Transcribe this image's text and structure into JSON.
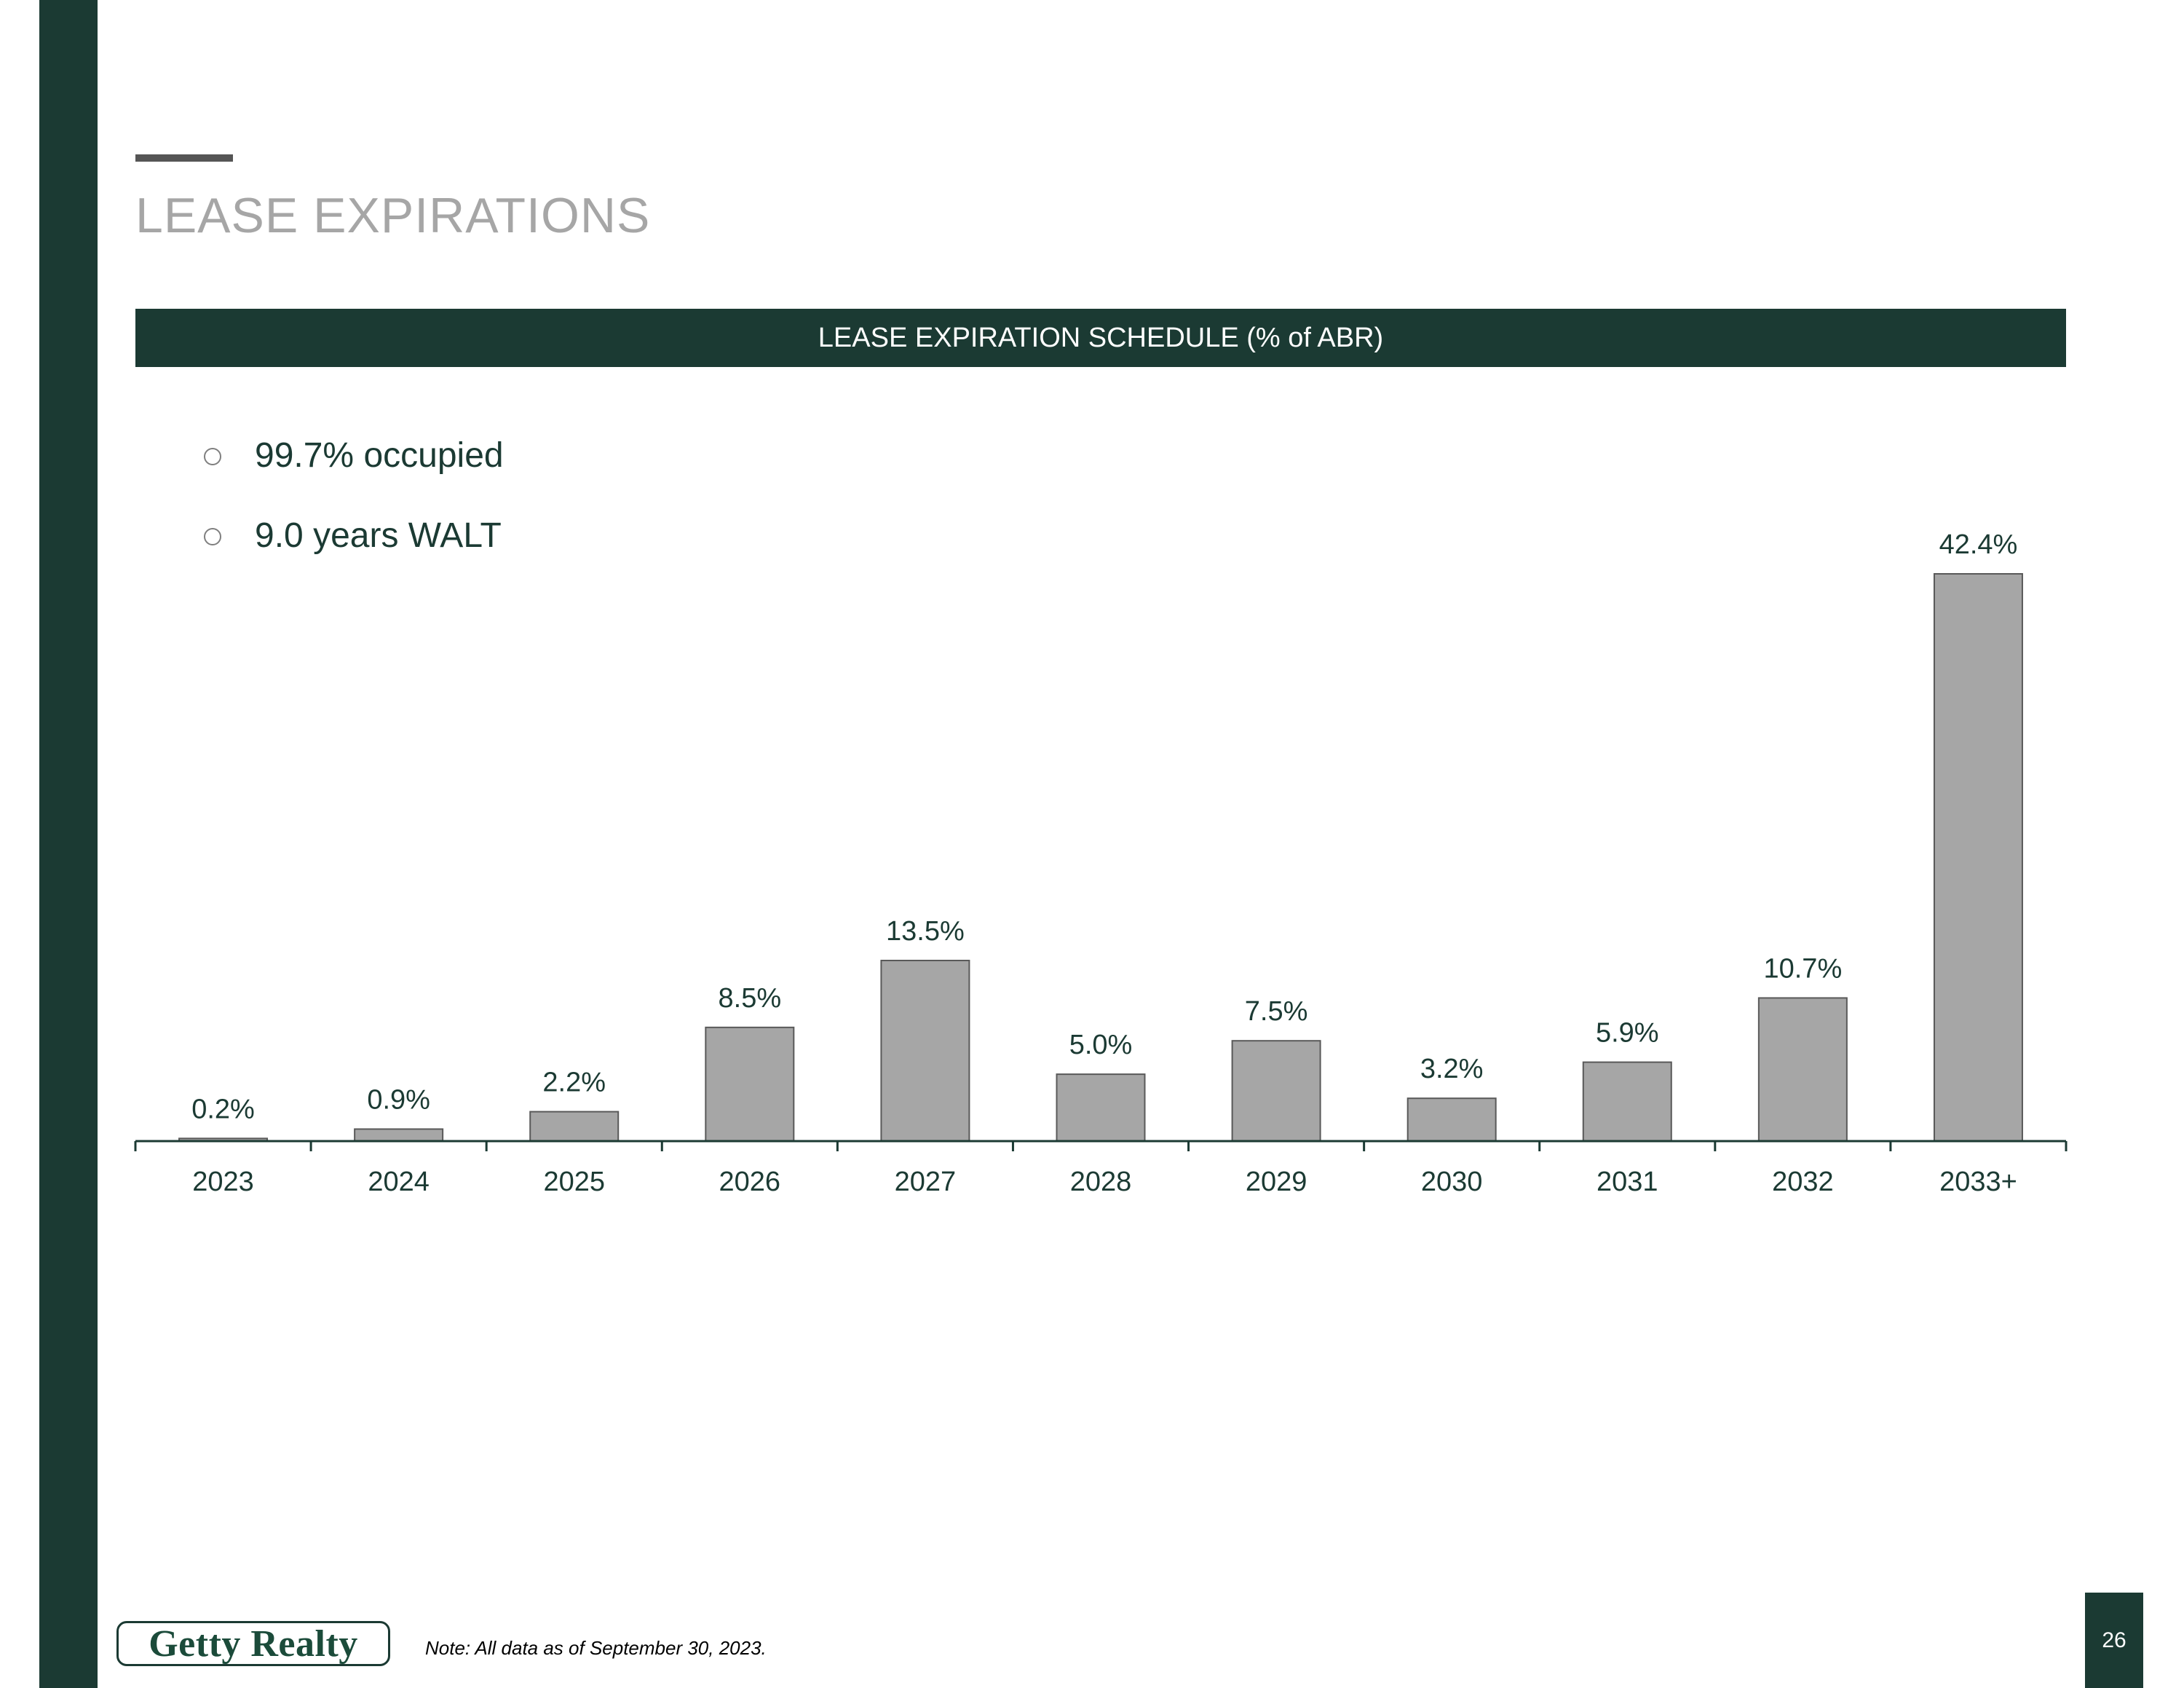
{
  "page": {
    "title": "LEASE EXPIRATIONS",
    "banner": "LEASE EXPIRATION SCHEDULE (% of ABR)",
    "bullets": [
      "99.7% occupied",
      "9.0 years WALT"
    ],
    "note": "Note: All data as of September 30, 2023.",
    "page_number": "26",
    "logo_text": "Getty Realty"
  },
  "colors": {
    "brand_green": "#1b3a33",
    "bar_fill": "#a6a6a6",
    "label_text": "#1b3a33",
    "title_gray": "#a6a6a6"
  },
  "chart_data": {
    "type": "bar",
    "categories": [
      "2023",
      "2024",
      "2025",
      "2026",
      "2027",
      "2028",
      "2029",
      "2030",
      "2031",
      "2032",
      "2033+"
    ],
    "values": [
      0.2,
      0.9,
      2.2,
      8.5,
      13.5,
      5.0,
      7.5,
      3.2,
      5.9,
      10.7,
      42.4
    ],
    "data_labels": [
      "0.2%",
      "0.9%",
      "2.2%",
      "8.5%",
      "13.5%",
      "5.0%",
      "7.5%",
      "3.2%",
      "5.9%",
      "10.7%",
      "42.4%"
    ],
    "title": "LEASE EXPIRATION SCHEDULE (% of ABR)",
    "xlabel": "",
    "ylabel": "",
    "ylim": [
      0,
      42.4
    ],
    "grid": false,
    "legend": "none"
  }
}
